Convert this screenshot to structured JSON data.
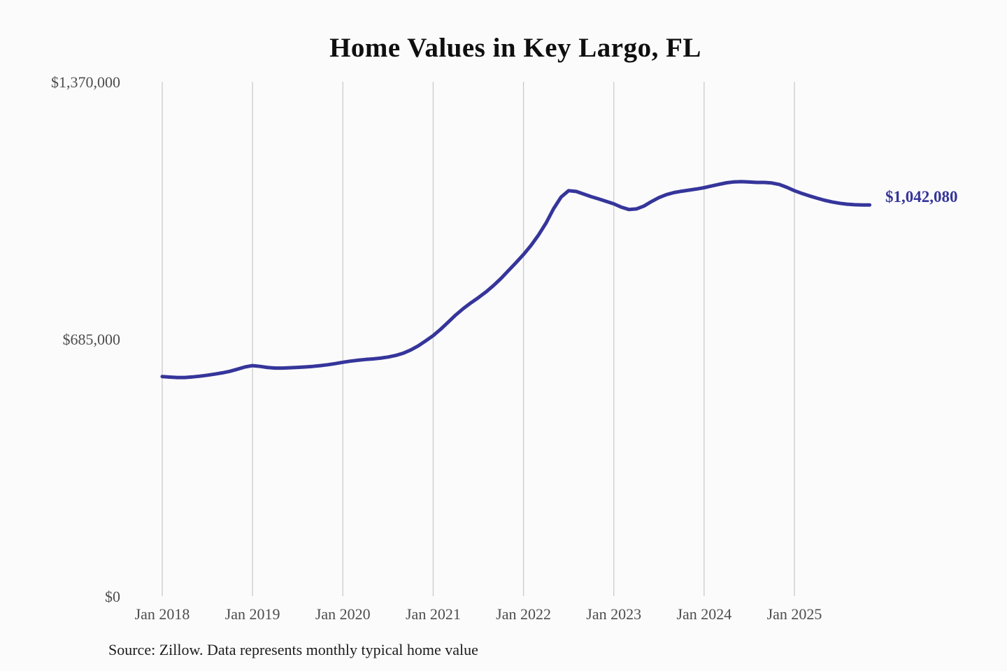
{
  "chart_data": {
    "type": "line",
    "title": "Home Values in Key Largo, FL",
    "source_note": "Source: Zillow. Data represents monthly typical home value",
    "series_name": "Monthly typical home value",
    "legend": "none",
    "grid": "vertical-only",
    "line_color": "#35359b",
    "grid_color": "#cbcbcb",
    "tick_color": "#4d4d4d",
    "title_color": "#0f0f0f",
    "end_label": "$1,042,080",
    "end_value": 1042080,
    "ylim": [
      0,
      1370000
    ],
    "y_ticks": [
      {
        "value": 0,
        "label": "$0"
      },
      {
        "value": 685000,
        "label": "$685,000"
      },
      {
        "value": 1370000,
        "label": "$1,370,000"
      }
    ],
    "x_ticks": [
      {
        "month_index": 0,
        "label": "Jan 2018"
      },
      {
        "month_index": 12,
        "label": "Jan 2019"
      },
      {
        "month_index": 24,
        "label": "Jan 2020"
      },
      {
        "month_index": 36,
        "label": "Jan 2021"
      },
      {
        "month_index": 48,
        "label": "Jan 2022"
      },
      {
        "month_index": 60,
        "label": "Jan 2023"
      },
      {
        "month_index": 72,
        "label": "Jan 2024"
      },
      {
        "month_index": 84,
        "label": "Jan 2025"
      }
    ],
    "x": [
      "2018-01",
      "2018-02",
      "2018-03",
      "2018-04",
      "2018-05",
      "2018-06",
      "2018-07",
      "2018-08",
      "2018-09",
      "2018-10",
      "2018-11",
      "2018-12",
      "2019-01",
      "2019-02",
      "2019-03",
      "2019-04",
      "2019-05",
      "2019-06",
      "2019-07",
      "2019-08",
      "2019-09",
      "2019-10",
      "2019-11",
      "2019-12",
      "2020-01",
      "2020-02",
      "2020-03",
      "2020-04",
      "2020-05",
      "2020-06",
      "2020-07",
      "2020-08",
      "2020-09",
      "2020-10",
      "2020-11",
      "2020-12",
      "2021-01",
      "2021-02",
      "2021-03",
      "2021-04",
      "2021-05",
      "2021-06",
      "2021-07",
      "2021-08",
      "2021-09",
      "2021-10",
      "2021-11",
      "2021-12",
      "2022-01",
      "2022-02",
      "2022-03",
      "2022-04",
      "2022-05",
      "2022-06",
      "2022-07",
      "2022-08",
      "2022-09",
      "2022-10",
      "2022-11",
      "2022-12",
      "2023-01",
      "2023-02",
      "2023-03",
      "2023-04",
      "2023-05",
      "2023-06",
      "2023-07",
      "2023-08",
      "2023-09",
      "2023-10",
      "2023-11",
      "2023-12",
      "2024-01",
      "2024-02",
      "2024-03",
      "2024-04",
      "2024-05",
      "2024-06",
      "2024-07",
      "2024-08",
      "2024-09",
      "2024-10",
      "2024-11",
      "2024-12",
      "2025-01",
      "2025-02",
      "2025-03",
      "2025-04",
      "2025-05",
      "2025-06",
      "2025-07",
      "2025-08",
      "2025-09",
      "2025-10",
      "2025-11"
    ],
    "values": [
      585000,
      583500,
      582500,
      582500,
      584000,
      586000,
      588500,
      591500,
      595000,
      599000,
      604500,
      610500,
      614000,
      612000,
      609000,
      607500,
      607500,
      608500,
      609500,
      610500,
      612000,
      614000,
      616500,
      619500,
      623000,
      626000,
      628500,
      630500,
      632000,
      634000,
      637000,
      641000,
      647000,
      655500,
      666500,
      680000,
      694000,
      711000,
      730000,
      749000,
      766000,
      781000,
      795000,
      810000,
      827000,
      846000,
      867000,
      888000,
      910000,
      934000,
      962000,
      994000,
      1032000,
      1063000,
      1080000,
      1078000,
      1071000,
      1064000,
      1058000,
      1051500,
      1045000,
      1036000,
      1030000,
      1031500,
      1039000,
      1051000,
      1061500,
      1069500,
      1075000,
      1078500,
      1081500,
      1084500,
      1088000,
      1092500,
      1097000,
      1101000,
      1103500,
      1104000,
      1103000,
      1102000,
      1102000,
      1100500,
      1096500,
      1089000,
      1080000,
      1072500,
      1066000,
      1060000,
      1054500,
      1050000,
      1046500,
      1044000,
      1042500,
      1042000,
      1042080
    ]
  }
}
